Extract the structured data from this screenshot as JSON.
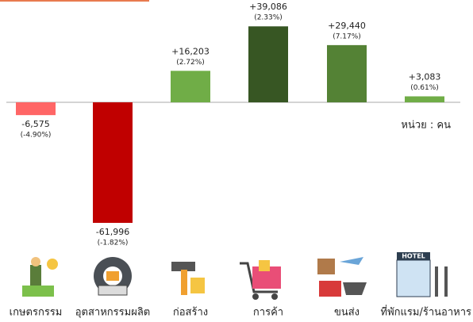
{
  "chart_data": {
    "type": "bar",
    "annotation": "หน่วย : คน",
    "categories": [
      "เกษตรกรรม",
      "อุตสาหกรรมผลิต",
      "ก่อสร้าง",
      "การค้า",
      "ขนส่ง",
      "ที่พักแรม/ร้านอาหาร"
    ],
    "values": [
      -6575,
      -61996,
      16203,
      39086,
      29440,
      3083
    ],
    "value_labels": [
      "-6,575",
      "-61,996",
      "+16,203",
      "+39,086",
      "+29,440",
      "+3,083"
    ],
    "percent_labels": [
      "(-4.90%)",
      "(-1.82%)",
      "(2.72%)",
      "(2.33%)",
      "(7.17%)",
      "(0.61%)"
    ],
    "colors": [
      "#ff6666",
      "#c00000",
      "#70ad47",
      "#375623",
      "#548235",
      "#70ad47"
    ],
    "ylim": [
      -62000,
      40000
    ]
  }
}
